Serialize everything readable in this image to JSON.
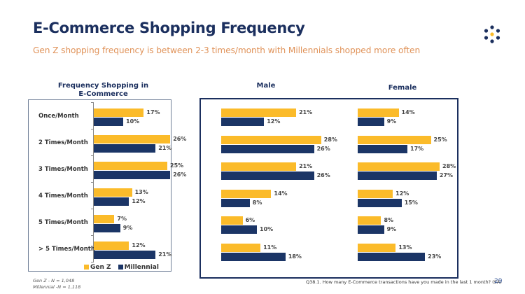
{
  "header": {
    "title": "E-Commerce Shopping Frequency",
    "subtitle": "Gen Z shopping frequency is between 2-3 times/month with Millennials shopped more often",
    "logo_icon": "hexagon-dots-logo-icon"
  },
  "colors": {
    "genz": "#fbbb2a",
    "millennial": "#1b3566",
    "title": "#1b2f5e",
    "subtitle": "#e0935a"
  },
  "notes": {
    "genz_n": "Gen Z - N = 1,048",
    "millennial_n": "Millennial -N = 1,118"
  },
  "footer": {
    "question": "Q38.1. How many E-Commerce transactions have you made in the last 1 month? (SA)",
    "page_number": "29"
  },
  "chart_data": [
    {
      "type": "bar",
      "orientation": "horizontal",
      "title": "Frequency Shopping in E-Commerce",
      "categories": [
        "Once/Month",
        "2 Times/Month",
        "3 Times/Month",
        "4 Times/Month",
        "5 Times/Month",
        "> 5 Times/Month"
      ],
      "series": [
        {
          "name": "Gen Z",
          "values": [
            17,
            26,
            25,
            13,
            7,
            12
          ]
        },
        {
          "name": "Millennial",
          "values": [
            10,
            21,
            26,
            12,
            9,
            21
          ]
        }
      ],
      "value_suffix": "%",
      "legend": [
        "Gen Z",
        "Millennial"
      ],
      "legend_position": "bottom"
    },
    {
      "type": "bar",
      "orientation": "horizontal",
      "title": "Male",
      "categories": [
        "Once/Month",
        "2 Times/Month",
        "3 Times/Month",
        "4 Times/Month",
        "5 Times/Month",
        "> 5 Times/Month"
      ],
      "series": [
        {
          "name": "Gen Z",
          "values": [
            21,
            28,
            21,
            14,
            6,
            11
          ]
        },
        {
          "name": "Millennial",
          "values": [
            12,
            26,
            26,
            8,
            10,
            18
          ]
        }
      ],
      "value_suffix": "%"
    },
    {
      "type": "bar",
      "orientation": "horizontal",
      "title": "Female",
      "categories": [
        "Once/Month",
        "2 Times/Month",
        "3 Times/Month",
        "4 Times/Month",
        "5 Times/Month",
        "> 5 Times/Month"
      ],
      "series": [
        {
          "name": "Gen Z",
          "values": [
            14,
            25,
            28,
            12,
            8,
            13
          ]
        },
        {
          "name": "Millennial",
          "values": [
            9,
            17,
            27,
            15,
            9,
            23
          ]
        }
      ],
      "value_suffix": "%"
    }
  ]
}
